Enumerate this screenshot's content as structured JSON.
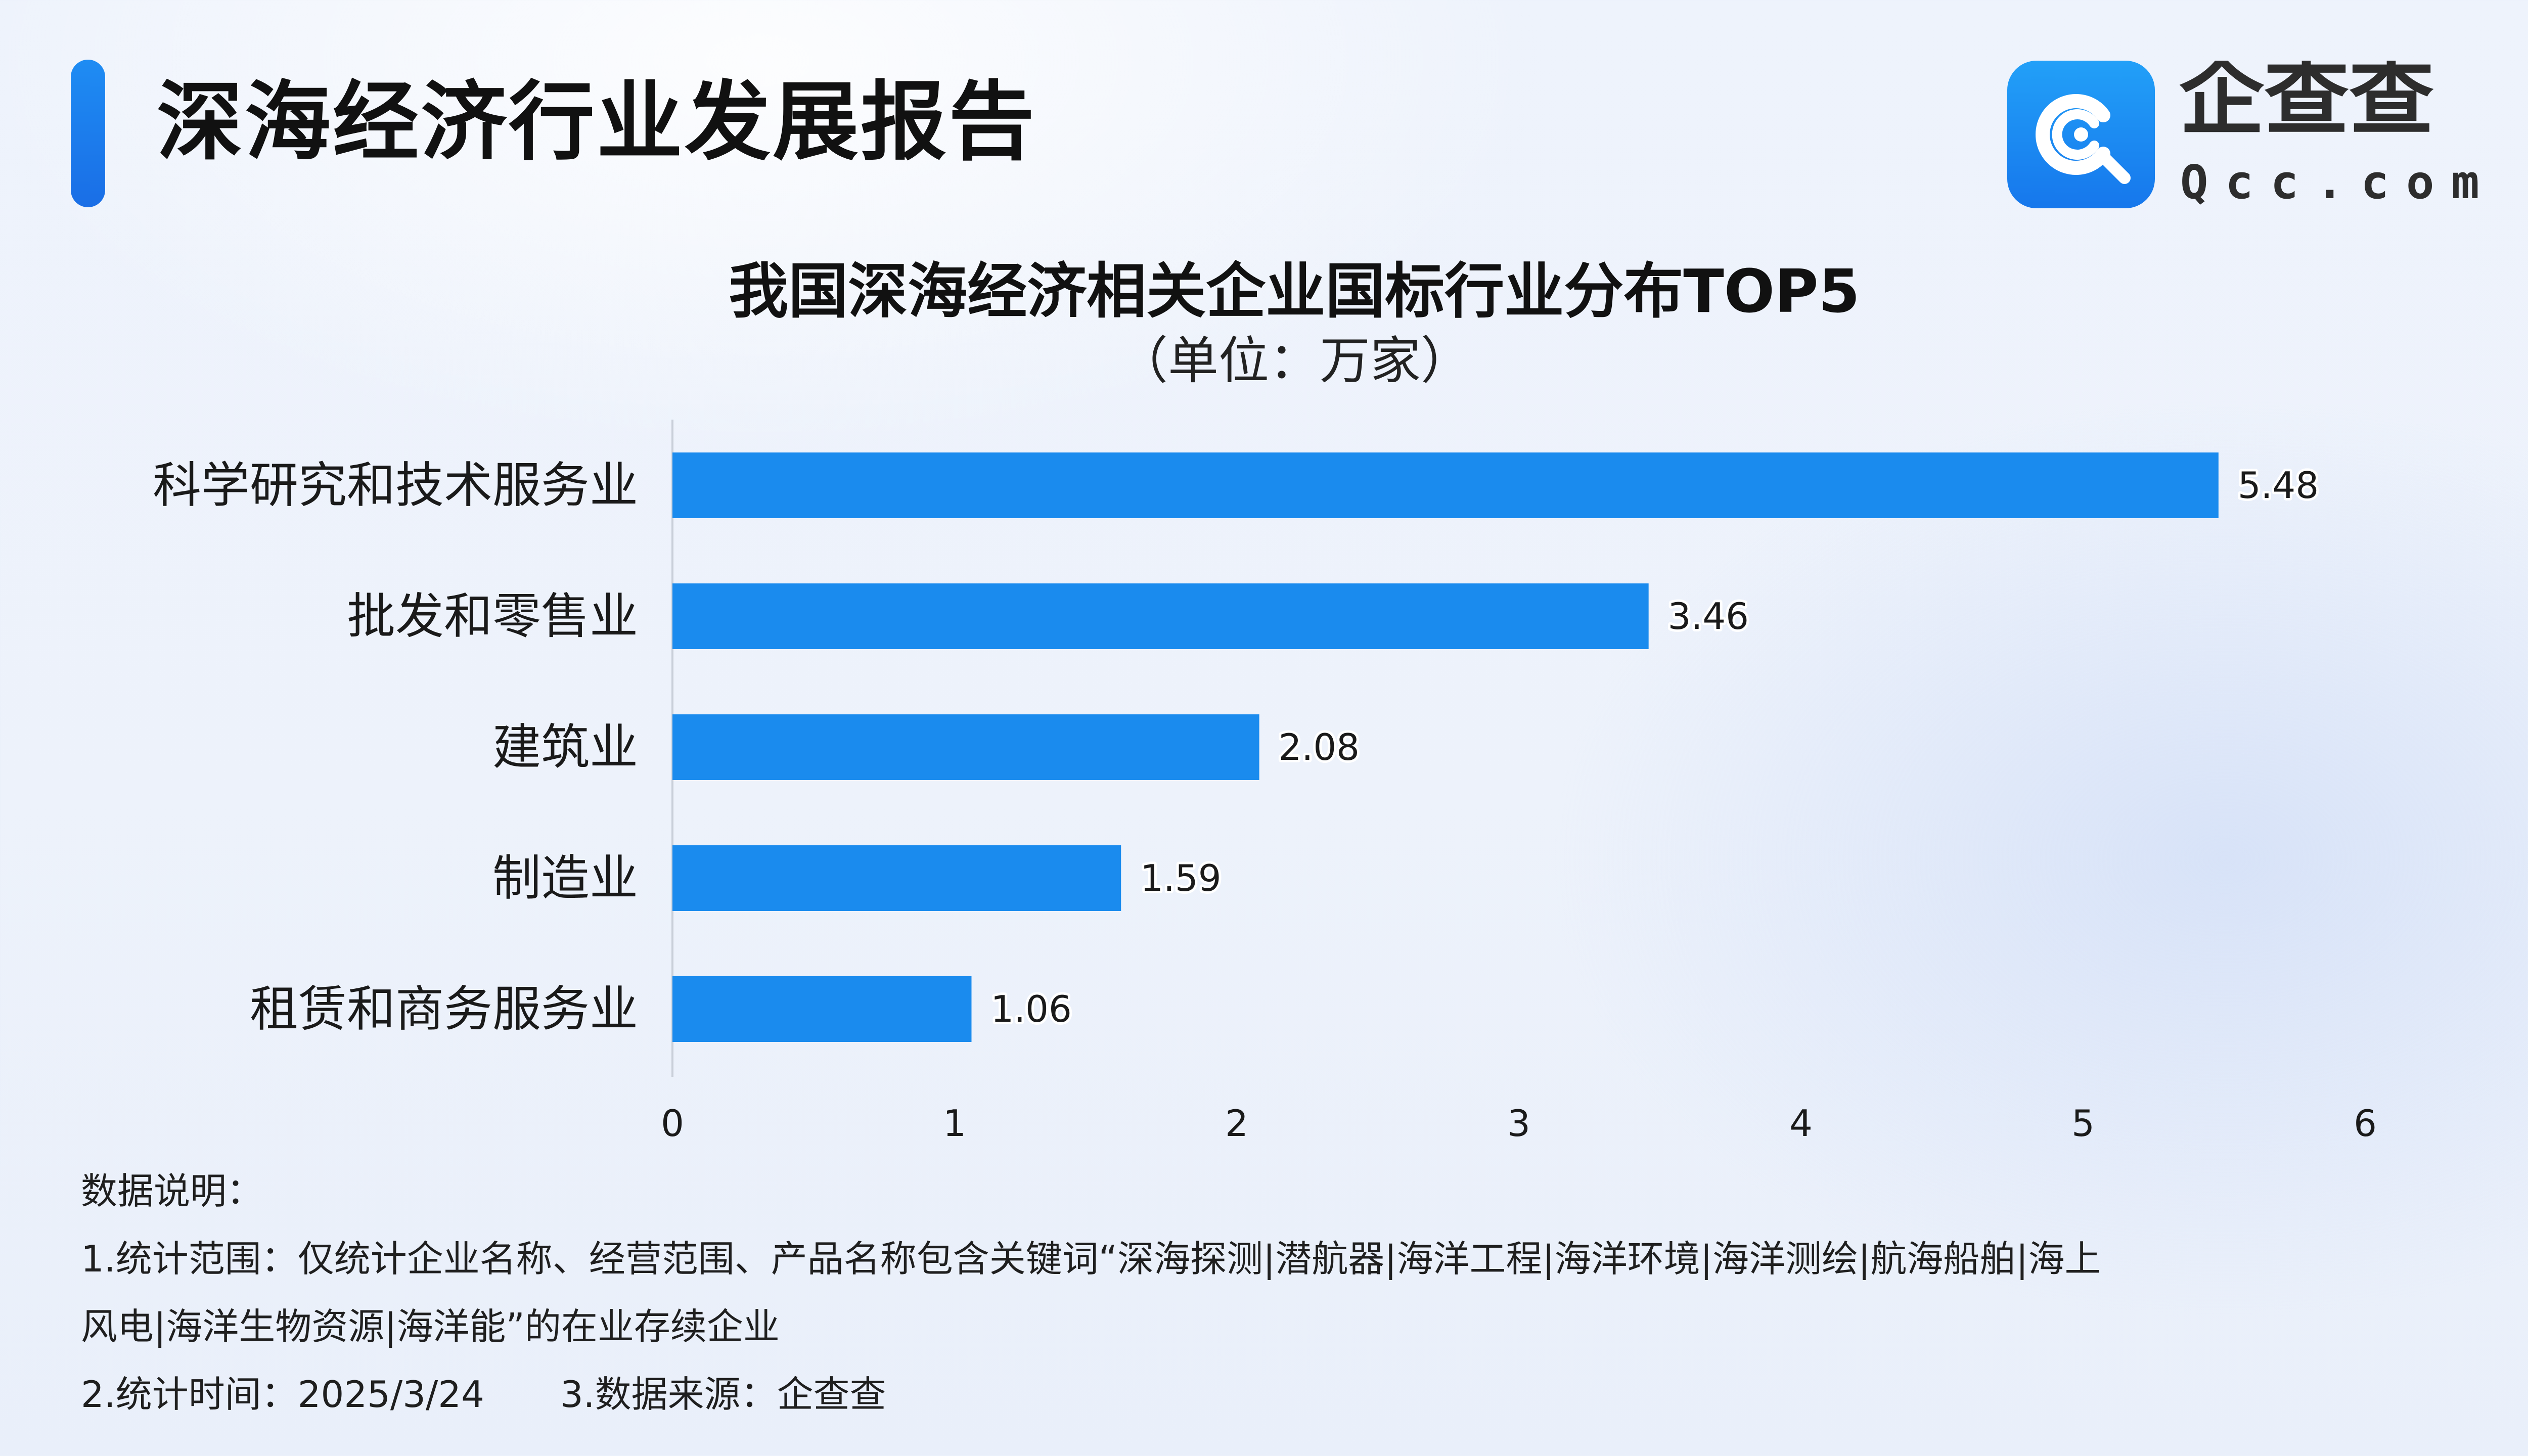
{
  "header": {
    "title": "深海经济行业发展报告"
  },
  "logo": {
    "name": "企查查",
    "domain": "Qcc.com",
    "icon": "qcc-logo-icon"
  },
  "chart_data": {
    "type": "bar",
    "orientation": "horizontal",
    "title": "我国深海经济相关企业国标行业分布TOP5",
    "subtitle": "（单位：万家）",
    "categories": [
      "科学研究和技术服务业",
      "批发和零售业",
      "建筑业",
      "制造业",
      "租赁和商务服务业"
    ],
    "values": [
      5.48,
      3.46,
      2.08,
      1.59,
      1.06
    ],
    "value_labels": [
      "5.48",
      "3.46",
      "2.08",
      "1.59",
      "1.06"
    ],
    "xlim": [
      0,
      6
    ],
    "xticks": [
      "0",
      "1",
      "2",
      "3",
      "4",
      "5",
      "6"
    ],
    "xlabel": "",
    "ylabel": "",
    "grid": false,
    "legend": "none",
    "bar_color": "#1a8bee"
  },
  "notes": {
    "heading": "数据说明：",
    "line1": "1.统计范围：仅统计企业名称、经营范围、产品名称包含关键词“深海探测|潜航器|海洋工程|海洋环境|海洋测绘|航海船舶|海上",
    "line2": "风电|海洋生物资源|海洋能”的在业存续企业",
    "time": "2.统计时间：2025/3/24",
    "source": "3.数据来源：企查查"
  },
  "colors": {
    "accent": "#1a73e8",
    "bar": "#1a8bee",
    "logo_dark": "#2d2d2d"
  }
}
